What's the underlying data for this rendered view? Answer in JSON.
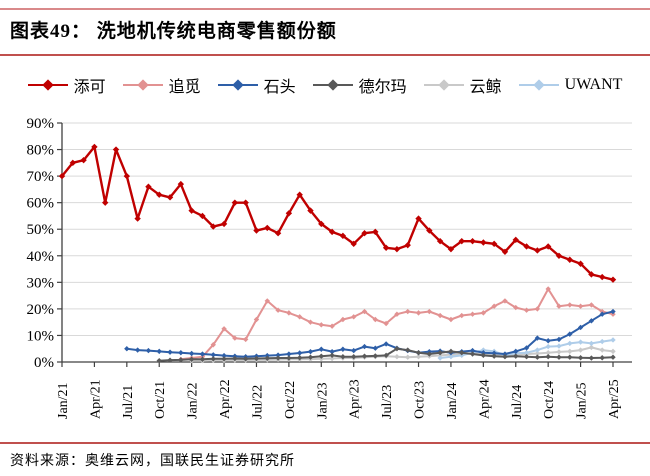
{
  "header": {
    "title": "图表49： 洗地机传统电商零售额份额"
  },
  "footer": {
    "source": "资料来源：奥维云网，国联民生证券研究所"
  },
  "colors": {
    "rule_top": "#D9898A",
    "rule_accent": "#C0504D",
    "grid": "#D9D9D9",
    "axis": "#404040",
    "text": "#000000"
  },
  "chart_data": {
    "type": "line",
    "title": "洗地机传统电商零售额份额",
    "xlabel": "",
    "ylabel": "",
    "unit": "percent",
    "ylim": [
      0,
      90
    ],
    "grid": "horizontal",
    "legend_position": "top",
    "n_points": 52,
    "x_start": "Jan/21",
    "x_end": "Apr/25",
    "x_tick_every_months": 3,
    "x_tick_labels": [
      "Jan/21",
      "Apr/21",
      "Jul/21",
      "Oct/21",
      "Jan/22",
      "Apr/22",
      "Jul/22",
      "Oct/22",
      "Jan/23",
      "Apr/23",
      "Jul/23",
      "Oct/23",
      "Jan/24",
      "Apr/24",
      "Jul/24",
      "Oct/24",
      "Jan/25",
      "Apr/25"
    ],
    "y_tick_labels": [
      "0%",
      "10%",
      "20%",
      "30%",
      "40%",
      "50%",
      "60%",
      "70%",
      "80%",
      "90%"
    ],
    "series": [
      {
        "key": "tianke",
        "name": "添可",
        "color": "#C00000",
        "start_index": 0,
        "values": [
          70,
          75,
          76,
          81,
          60,
          80,
          70,
          54,
          66,
          63,
          62,
          67,
          57,
          55,
          51,
          52,
          60,
          60,
          49.5,
          50.5,
          48.5,
          56,
          63,
          57,
          52,
          49,
          47.5,
          44.5,
          48.5,
          49,
          43,
          42.5,
          44,
          54,
          49.5,
          45.5,
          42.5,
          45.5,
          45.5,
          45,
          44.5,
          41.5,
          46,
          43.5,
          42,
          43.5,
          40,
          38.5,
          37,
          33,
          32,
          31
        ]
      },
      {
        "key": "zhuimi",
        "name": "追觅",
        "color": "#E29292",
        "start_index": 11,
        "values": [
          1,
          1.5,
          2,
          6.5,
          12.5,
          9,
          8.5,
          16,
          23,
          19.5,
          18.5,
          17,
          15,
          14,
          13.5,
          16,
          17,
          19,
          16,
          14.5,
          18,
          19,
          18.5,
          19,
          17.5,
          16,
          17.5,
          18,
          18.5,
          21,
          23,
          20.5,
          19.5,
          20,
          27.5,
          21,
          21.5,
          21,
          21.5,
          19,
          18
        ]
      },
      {
        "key": "shitou",
        "name": "石头",
        "color": "#2E5FA8",
        "start_index": 6,
        "values": [
          5,
          4.5,
          4.3,
          4,
          3.7,
          3.5,
          3.2,
          3,
          2.7,
          2.4,
          2.2,
          2,
          2.2,
          2.4,
          2.6,
          3,
          3.4,
          3.9,
          4.8,
          3.9,
          4.8,
          4.3,
          5.8,
          5.2,
          6.8,
          5.2,
          4.3,
          3.5,
          3.9,
          4.1,
          3.5,
          3.9,
          4.3,
          3.5,
          3.3,
          3,
          4,
          5.3,
          9,
          8,
          8.5,
          10.5,
          13,
          15.5,
          18,
          19
        ]
      },
      {
        "key": "deerma",
        "name": "德尔玛",
        "color": "#595959",
        "start_index": 9,
        "values": [
          0.5,
          0.7,
          0.8,
          1,
          1,
          1.2,
          1.2,
          1.3,
          1.2,
          1.3,
          1.4,
          1.5,
          1.5,
          1.6,
          1.8,
          2.2,
          2.5,
          2,
          2,
          2.2,
          2.3,
          2.5,
          5,
          4.5,
          3.5,
          3,
          3.5,
          4,
          3.5,
          3,
          2.5,
          2.2,
          2,
          2.2,
          2,
          1.8,
          2,
          1.8,
          1.8,
          1.6,
          1.5,
          1.6,
          1.8
        ]
      },
      {
        "key": "yunjing",
        "name": "云鲸",
        "color": "#C9C9C9",
        "start_index": 12,
        "values": [
          0.5,
          0.5,
          0.6,
          0.6,
          0.7,
          0.7,
          0.8,
          0.8,
          0.9,
          1,
          1,
          1.1,
          1.2,
          1.3,
          1.5,
          1.5,
          1.8,
          2,
          2.2,
          2,
          1.8,
          2,
          2.2,
          2.5,
          2.8,
          3,
          3.2,
          3,
          2.8,
          2.6,
          2.8,
          3,
          3.2,
          3.5,
          3.8,
          4,
          4.5,
          5.5,
          4.5,
          4
        ]
      },
      {
        "key": "uwant",
        "name": "UWANT",
        "color": "#AFCDE9",
        "start_index": 35,
        "values": [
          1.5,
          2,
          2.5,
          3.5,
          4.5,
          4,
          2.6,
          3.3,
          3.5,
          4.5,
          5.8,
          6,
          7,
          7.5,
          7,
          7.7,
          8.3
        ]
      }
    ]
  }
}
